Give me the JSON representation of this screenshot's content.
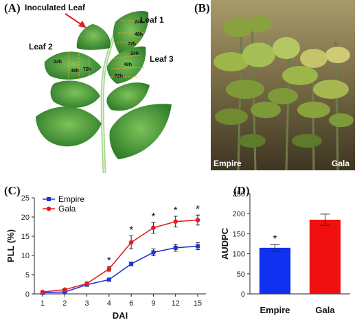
{
  "panels": {
    "a": {
      "label": "(A)",
      "inoculated_label": "Inoculated Leaf",
      "leaf1": "Leaf 1",
      "leaf2": "Leaf 2",
      "leaf3": "Leaf 3",
      "time_24": "24h",
      "time_48": "48h",
      "time_72": "72h",
      "leaf_color": "#4f9a3a",
      "stem_color": "#9fc98a"
    },
    "b": {
      "label": "(B)",
      "left_caption": "Empire",
      "right_caption": "Gala"
    },
    "c": {
      "label": "(C)"
    },
    "d": {
      "label": "(D)"
    }
  },
  "chart_data": [
    {
      "type": "line",
      "panel": "C",
      "xlabel": "DAI",
      "ylabel": "PLL (%)",
      "categories": [
        "1",
        "2",
        "3",
        "4",
        "6",
        "9",
        "12",
        "15"
      ],
      "ylim": [
        0,
        25
      ],
      "yticks": [
        0,
        5,
        10,
        15,
        20,
        25
      ],
      "grid": false,
      "legend_position": "top-left",
      "series": [
        {
          "name": "Empire",
          "color": "#1f35d6",
          "marker": "square",
          "values": [
            0.3,
            0.5,
            2.4,
            3.7,
            7.8,
            10.8,
            12.0,
            12.4
          ],
          "errors": [
            0.3,
            0.2,
            0.3,
            0.3,
            0.5,
            0.9,
            0.9,
            0.9
          ]
        },
        {
          "name": "Gala",
          "color": "#e02020",
          "marker": "circle",
          "values": [
            0.5,
            1.1,
            2.7,
            6.5,
            13.4,
            17.2,
            18.8,
            19.2
          ],
          "errors": [
            0.3,
            0.3,
            0.4,
            0.6,
            1.7,
            1.4,
            1.4,
            1.3
          ]
        }
      ],
      "significance": {
        "symbol": "*",
        "categories": [
          "4",
          "6",
          "9",
          "12",
          "15"
        ]
      }
    },
    {
      "type": "bar",
      "panel": "D",
      "ylabel": "AUDPC",
      "categories": [
        "Empire",
        "Gala"
      ],
      "values": [
        115,
        185
      ],
      "errors": [
        8,
        14
      ],
      "colors": [
        "#1030f0",
        "#f01010"
      ],
      "ylim": [
        0,
        250
      ],
      "yticks": [
        0,
        50,
        100,
        150,
        200,
        250
      ],
      "grid": false,
      "significance": {
        "symbol": "*",
        "categories": [
          "Empire"
        ]
      }
    }
  ]
}
